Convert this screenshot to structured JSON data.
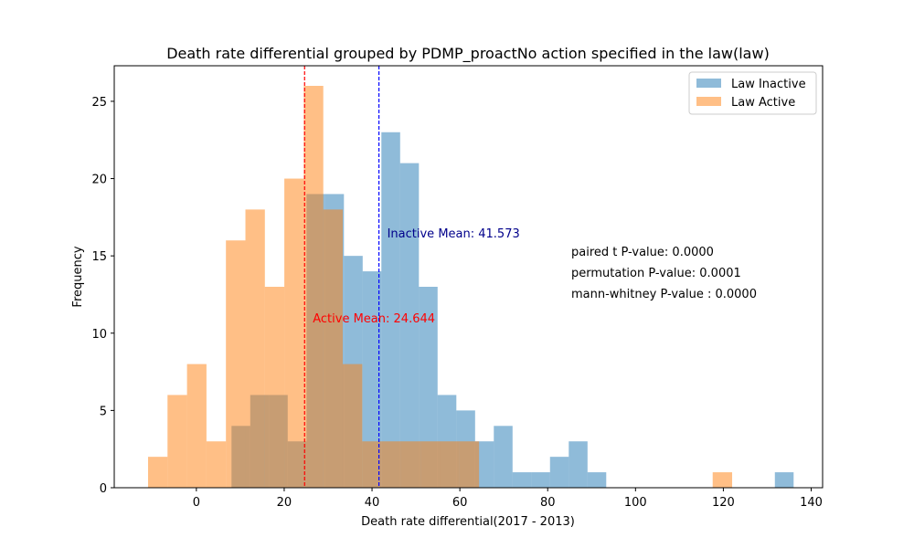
{
  "chart_data": {
    "type": "histogram",
    "title": "Death rate differential grouped by PDMP_proactNo action specified in the law(law)",
    "xlabel": "Death rate differential(2017 - 2013)",
    "ylabel": "Frequency",
    "xlim": [
      -18.7,
      142.6
    ],
    "ylim": [
      0,
      27.3
    ],
    "xticks": [
      0,
      20,
      40,
      60,
      80,
      100,
      120,
      140
    ],
    "yticks": [
      0,
      5,
      10,
      15,
      20,
      25
    ],
    "grid": false,
    "legend_position": "top-right",
    "series": [
      {
        "name": "Law Inactive",
        "color": "#1f77b4",
        "opacity": 0.5,
        "bin_edges": [
          8.0,
          12.27,
          16.53,
          20.8,
          25.07,
          29.33,
          33.6,
          37.87,
          42.13,
          46.4,
          50.67,
          54.93,
          59.2,
          63.47,
          67.73,
          72.0,
          76.27,
          80.53,
          84.8,
          89.07,
          93.33,
          97.6,
          101.87,
          106.13,
          110.4,
          114.67,
          118.93,
          123.2,
          127.47,
          131.73,
          136.0
        ],
        "counts": [
          4,
          6,
          6,
          3,
          19,
          19,
          15,
          14,
          23,
          21,
          13,
          6,
          5,
          3,
          4,
          1,
          1,
          2,
          3,
          1,
          0,
          0,
          0,
          0,
          0,
          0,
          0,
          0,
          0,
          1
        ]
      },
      {
        "name": "Law Active",
        "color": "#ff7f0e",
        "opacity": 0.5,
        "bin_edges": [
          -11.0,
          -6.57,
          -2.13,
          2.3,
          6.73,
          11.17,
          15.6,
          20.03,
          24.47,
          28.9,
          33.33,
          37.77,
          42.2,
          46.63,
          51.07,
          55.5,
          59.93,
          64.37,
          68.8,
          73.23,
          77.67,
          82.1,
          86.53,
          90.97,
          95.4,
          99.83,
          104.27,
          108.7,
          113.13,
          117.57,
          122.0
        ],
        "counts": [
          2,
          6,
          8,
          3,
          16,
          18,
          13,
          20,
          26,
          18,
          8,
          3,
          3,
          3,
          3,
          3,
          3,
          0,
          0,
          0,
          0,
          0,
          0,
          0,
          0,
          0,
          0,
          0,
          0,
          1
        ]
      }
    ],
    "mean_lines": [
      {
        "value": 41.573,
        "color": "#0000ff",
        "label": "Inactive Mean: 41.573",
        "label_color": "#00008b"
      },
      {
        "value": 24.644,
        "color": "#ff0000",
        "label": "Active Mean: 24.644",
        "label_color": "#ff0000"
      }
    ],
    "annotations": [
      "paired t P-value: 0.0000",
      "permutation P-value: 0.0001",
      "mann-whitney P-value : 0.0000"
    ]
  }
}
